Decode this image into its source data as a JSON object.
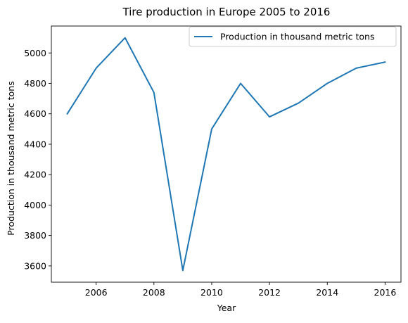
{
  "chart_data": {
    "type": "line",
    "title": "Tire production in Europe 2005 to 2016",
    "xlabel": "Year",
    "ylabel": "Production in thousand metric tons",
    "xlim": [
      2004.45,
      2016.55
    ],
    "ylim": [
      3493,
      5177
    ],
    "x_ticks": [
      2006,
      2008,
      2010,
      2012,
      2014,
      2016
    ],
    "y_ticks": [
      3600,
      3800,
      4000,
      4200,
      4400,
      4600,
      4800,
      5000
    ],
    "grid": false,
    "legend_position": "top-right",
    "series": [
      {
        "name": "Production in thousand metric tons",
        "color": "#1f77b4",
        "x": [
          2005,
          2006,
          2007,
          2008,
          2009,
          2010,
          2011,
          2012,
          2013,
          2014,
          2015,
          2016
        ],
        "y": [
          4600,
          4900,
          5100,
          4740,
          3570,
          4500,
          4800,
          4580,
          4670,
          4800,
          4900,
          4940
        ]
      }
    ]
  }
}
